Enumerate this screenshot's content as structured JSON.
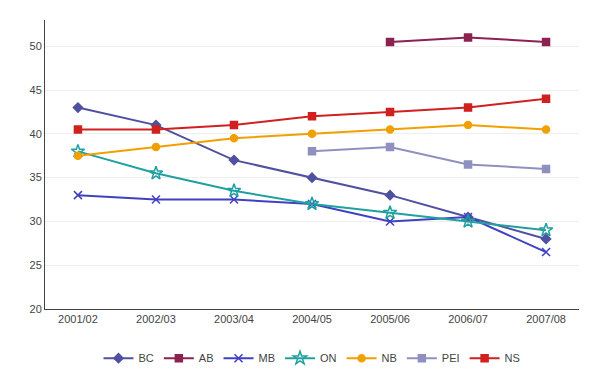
{
  "chart_data": {
    "type": "line",
    "categories": [
      "2001/02",
      "2002/03",
      "2003/04",
      "2004/05",
      "2005/06",
      "2006/07",
      "2007/08"
    ],
    "series": [
      {
        "name": "BC",
        "color": "#5050a0",
        "marker": "diamond",
        "values": [
          43.0,
          41.0,
          37.0,
          35.0,
          33.0,
          30.5,
          28.0
        ]
      },
      {
        "name": "AB",
        "color": "#8b2252",
        "marker": "square",
        "values": [
          null,
          null,
          null,
          null,
          50.5,
          51.0,
          50.5
        ]
      },
      {
        "name": "MB",
        "color": "#4040c0",
        "marker": "x",
        "values": [
          33.0,
          32.5,
          32.5,
          32.0,
          30.0,
          30.5,
          26.5
        ]
      },
      {
        "name": "ON",
        "color": "#20a0a0",
        "marker": "star",
        "values": [
          38.0,
          35.5,
          33.5,
          32.0,
          31.0,
          30.0,
          29.0
        ]
      },
      {
        "name": "NB",
        "color": "#f0a000",
        "marker": "circle",
        "values": [
          37.5,
          38.5,
          39.5,
          40.0,
          40.5,
          41.0,
          40.5
        ]
      },
      {
        "name": "PEI",
        "color": "#9090c0",
        "marker": "square",
        "values": [
          null,
          null,
          null,
          38.0,
          38.5,
          36.5,
          36.0
        ]
      },
      {
        "name": "NS",
        "color": "#d02020",
        "marker": "square",
        "values": [
          40.5,
          40.5,
          41.0,
          42.0,
          42.5,
          43.0,
          44.0
        ]
      }
    ],
    "ylim": [
      20,
      53
    ],
    "yticks": [
      20,
      25,
      30,
      35,
      40,
      45,
      50
    ],
    "grid": true,
    "legend": "bottom"
  }
}
